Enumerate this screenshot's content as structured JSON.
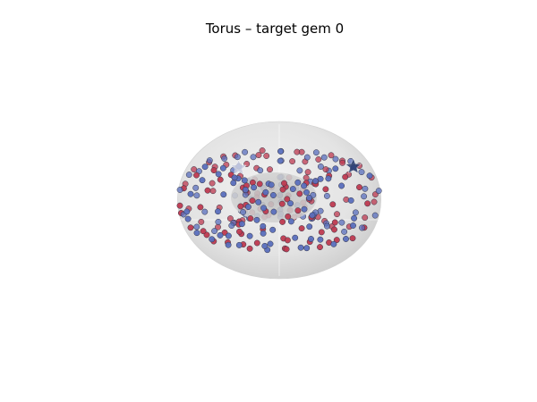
{
  "chart_data": {
    "type": "scatter",
    "title": "Torus – target gem 0",
    "projection": "3d",
    "surface": {
      "shape": "torus",
      "major_radius": 1.0,
      "minor_radius": 0.5,
      "color": "#d4d4d4"
    },
    "grid": false,
    "axes_visible": false,
    "legend": "none",
    "series": [
      {
        "color": "#be3a50",
        "values": [
          [
            0.3,
            -0.05
          ],
          [
            0.3,
            0.5
          ],
          [
            0.3,
            1.05
          ],
          [
            0.3,
            1.6
          ],
          [
            0.3,
            2.15
          ],
          [
            0.3,
            2.7
          ],
          [
            0.3,
            3.25
          ],
          [
            0.3,
            3.8
          ],
          [
            0.3,
            4.35
          ],
          [
            0.3,
            4.9
          ],
          [
            0.3,
            5.45
          ],
          [
            0.3,
            6.0
          ],
          [
            0.8,
            0.25
          ],
          [
            0.8,
            0.8
          ],
          [
            0.8,
            1.35
          ],
          [
            0.8,
            1.9
          ],
          [
            0.8,
            2.45
          ],
          [
            0.8,
            3.0
          ],
          [
            0.8,
            3.55
          ],
          [
            0.8,
            4.1
          ],
          [
            0.8,
            4.65
          ],
          [
            0.8,
            5.2
          ],
          [
            0.8,
            5.75
          ],
          [
            1.3,
            -0.05
          ],
          [
            1.3,
            0.5
          ],
          [
            1.3,
            1.05
          ],
          [
            1.3,
            1.6
          ],
          [
            1.3,
            2.15
          ],
          [
            1.3,
            2.7
          ],
          [
            1.3,
            3.25
          ],
          [
            1.3,
            3.8
          ],
          [
            1.3,
            4.35
          ],
          [
            1.3,
            4.9
          ],
          [
            1.3,
            5.45
          ],
          [
            1.3,
            6.0
          ],
          [
            1.8,
            0.25
          ],
          [
            1.8,
            0.8
          ],
          [
            1.8,
            1.35
          ],
          [
            1.8,
            1.9
          ],
          [
            1.8,
            2.45
          ],
          [
            1.8,
            3.0
          ],
          [
            1.8,
            3.55
          ],
          [
            1.8,
            4.1
          ],
          [
            1.8,
            4.65
          ],
          [
            1.8,
            5.2
          ],
          [
            1.8,
            5.75
          ],
          [
            2.3,
            -0.05
          ],
          [
            2.3,
            0.5
          ],
          [
            2.3,
            1.05
          ],
          [
            2.3,
            1.6
          ],
          [
            2.3,
            2.15
          ],
          [
            2.3,
            2.7
          ],
          [
            2.3,
            3.25
          ],
          [
            2.3,
            3.8
          ],
          [
            2.3,
            4.35
          ],
          [
            2.3,
            4.9
          ],
          [
            2.3,
            5.45
          ],
          [
            2.3,
            6.0
          ],
          [
            2.8,
            0.25
          ],
          [
            2.8,
            0.8
          ],
          [
            2.8,
            1.35
          ],
          [
            2.8,
            1.9
          ],
          [
            2.8,
            2.45
          ],
          [
            2.8,
            3.0
          ],
          [
            2.8,
            3.55
          ],
          [
            2.8,
            4.1
          ],
          [
            2.8,
            4.65
          ],
          [
            2.8,
            5.2
          ],
          [
            2.8,
            5.75
          ],
          [
            3.3,
            -0.05
          ],
          [
            3.3,
            0.5
          ],
          [
            3.3,
            1.05
          ],
          [
            3.3,
            1.6
          ],
          [
            3.3,
            2.15
          ],
          [
            3.3,
            2.7
          ],
          [
            3.3,
            3.25
          ],
          [
            3.3,
            3.8
          ],
          [
            3.3,
            4.35
          ],
          [
            3.3,
            4.9
          ],
          [
            3.3,
            5.45
          ],
          [
            3.3,
            6.0
          ],
          [
            3.8,
            0.25
          ],
          [
            3.8,
            0.8
          ],
          [
            3.8,
            1.35
          ],
          [
            3.8,
            1.9
          ],
          [
            3.8,
            2.45
          ],
          [
            3.8,
            3.0
          ],
          [
            3.8,
            3.55
          ],
          [
            3.8,
            4.1
          ],
          [
            3.8,
            4.65
          ],
          [
            3.8,
            5.2
          ],
          [
            3.8,
            5.75
          ],
          [
            4.3,
            -0.05
          ],
          [
            4.3,
            0.5
          ],
          [
            4.3,
            1.05
          ],
          [
            4.3,
            1.6
          ],
          [
            4.3,
            2.15
          ],
          [
            4.3,
            2.7
          ],
          [
            4.3,
            3.25
          ],
          [
            4.3,
            3.8
          ],
          [
            4.3,
            4.35
          ],
          [
            4.3,
            4.9
          ],
          [
            4.3,
            5.45
          ],
          [
            4.3,
            6.0
          ],
          [
            4.8,
            0.25
          ],
          [
            4.8,
            0.8
          ],
          [
            4.8,
            1.35
          ],
          [
            4.8,
            1.9
          ],
          [
            4.8,
            2.45
          ],
          [
            4.8,
            3.0
          ],
          [
            4.8,
            3.55
          ],
          [
            4.8,
            4.1
          ],
          [
            4.8,
            4.65
          ],
          [
            4.8,
            5.2
          ],
          [
            4.8,
            5.75
          ],
          [
            5.3,
            -0.05
          ],
          [
            5.3,
            0.5
          ],
          [
            5.3,
            1.05
          ],
          [
            5.3,
            1.6
          ],
          [
            5.3,
            2.15
          ],
          [
            5.3,
            2.7
          ],
          [
            5.3,
            3.25
          ],
          [
            5.3,
            3.8
          ],
          [
            5.3,
            4.35
          ],
          [
            5.3,
            4.9
          ],
          [
            5.3,
            5.45
          ],
          [
            5.3,
            6.0
          ],
          [
            5.8,
            0.25
          ],
          [
            5.8,
            0.8
          ],
          [
            5.8,
            1.35
          ],
          [
            5.8,
            1.9
          ],
          [
            5.8,
            2.45
          ],
          [
            5.8,
            3.0
          ],
          [
            5.8,
            3.55
          ],
          [
            5.8,
            4.1
          ],
          [
            5.8,
            4.65
          ],
          [
            5.8,
            5.2
          ],
          [
            5.8,
            5.75
          ]
        ]
      },
      {
        "color": "#5a6fbd",
        "values": [
          [
            0.05,
            0.25
          ],
          [
            0.05,
            0.8
          ],
          [
            0.05,
            1.35
          ],
          [
            0.05,
            1.9
          ],
          [
            0.05,
            2.45
          ],
          [
            0.05,
            3.0
          ],
          [
            0.05,
            3.55
          ],
          [
            0.05,
            4.1
          ],
          [
            0.05,
            4.65
          ],
          [
            0.05,
            5.2
          ],
          [
            0.05,
            5.75
          ],
          [
            0.55,
            -0.05
          ],
          [
            0.55,
            0.5
          ],
          [
            0.55,
            1.05
          ],
          [
            0.55,
            1.6
          ],
          [
            0.55,
            2.15
          ],
          [
            0.55,
            2.7
          ],
          [
            0.55,
            3.25
          ],
          [
            0.55,
            3.8
          ],
          [
            0.55,
            4.35
          ],
          [
            0.55,
            4.9
          ],
          [
            0.55,
            5.45
          ],
          [
            0.55,
            6.0
          ],
          [
            1.05,
            0.25
          ],
          [
            1.05,
            0.8
          ],
          [
            1.05,
            1.35
          ],
          [
            1.05,
            1.9
          ],
          [
            1.05,
            2.45
          ],
          [
            1.05,
            3.0
          ],
          [
            1.05,
            3.55
          ],
          [
            1.05,
            4.1
          ],
          [
            1.05,
            4.65
          ],
          [
            1.05,
            5.2
          ],
          [
            1.05,
            5.75
          ],
          [
            1.55,
            -0.05
          ],
          [
            1.55,
            0.5
          ],
          [
            1.55,
            1.05
          ],
          [
            1.55,
            1.6
          ],
          [
            1.55,
            2.15
          ],
          [
            1.55,
            2.7
          ],
          [
            1.55,
            3.25
          ],
          [
            1.55,
            3.8
          ],
          [
            1.55,
            4.35
          ],
          [
            1.55,
            4.9
          ],
          [
            1.55,
            5.45
          ],
          [
            1.55,
            6.0
          ],
          [
            2.05,
            0.25
          ],
          [
            2.05,
            0.8
          ],
          [
            2.05,
            1.35
          ],
          [
            2.05,
            1.9
          ],
          [
            2.05,
            2.45
          ],
          [
            2.05,
            3.0
          ],
          [
            2.05,
            3.55
          ],
          [
            2.05,
            4.1
          ],
          [
            2.05,
            4.65
          ],
          [
            2.05,
            5.2
          ],
          [
            2.05,
            5.75
          ],
          [
            2.55,
            -0.05
          ],
          [
            2.55,
            0.5
          ],
          [
            2.55,
            1.05
          ],
          [
            2.55,
            1.6
          ],
          [
            2.55,
            2.15
          ],
          [
            2.55,
            2.7
          ],
          [
            2.55,
            3.25
          ],
          [
            2.55,
            3.8
          ],
          [
            2.55,
            4.35
          ],
          [
            2.55,
            4.9
          ],
          [
            2.55,
            5.45
          ],
          [
            2.55,
            6.0
          ],
          [
            3.05,
            0.25
          ],
          [
            3.05,
            0.8
          ],
          [
            3.05,
            1.35
          ],
          [
            3.05,
            1.9
          ],
          [
            3.05,
            2.45
          ],
          [
            3.05,
            3.0
          ],
          [
            3.05,
            3.55
          ],
          [
            3.05,
            4.1
          ],
          [
            3.05,
            4.65
          ],
          [
            3.05,
            5.2
          ],
          [
            3.05,
            5.75
          ],
          [
            3.55,
            -0.05
          ],
          [
            3.55,
            0.5
          ],
          [
            3.55,
            1.05
          ],
          [
            3.55,
            1.6
          ],
          [
            3.55,
            2.15
          ],
          [
            3.55,
            2.7
          ],
          [
            3.55,
            3.25
          ],
          [
            3.55,
            3.8
          ],
          [
            3.55,
            4.35
          ],
          [
            3.55,
            4.9
          ],
          [
            3.55,
            5.45
          ],
          [
            3.55,
            6.0
          ],
          [
            4.05,
            0.25
          ],
          [
            4.05,
            0.8
          ],
          [
            4.05,
            1.35
          ],
          [
            4.05,
            1.9
          ],
          [
            4.05,
            2.45
          ],
          [
            4.05,
            3.0
          ],
          [
            4.05,
            3.55
          ],
          [
            4.05,
            4.1
          ],
          [
            4.05,
            4.65
          ],
          [
            4.05,
            5.2
          ],
          [
            4.05,
            5.75
          ],
          [
            4.55,
            -0.05
          ],
          [
            4.55,
            0.5
          ],
          [
            4.55,
            1.05
          ],
          [
            4.55,
            1.6
          ],
          [
            4.55,
            2.15
          ],
          [
            4.55,
            2.7
          ],
          [
            4.55,
            3.25
          ],
          [
            4.55,
            3.8
          ],
          [
            4.55,
            4.35
          ],
          [
            4.55,
            4.9
          ],
          [
            4.55,
            5.45
          ],
          [
            4.55,
            6.0
          ],
          [
            5.05,
            0.25
          ],
          [
            5.05,
            0.8
          ],
          [
            5.05,
            1.35
          ],
          [
            5.05,
            1.9
          ],
          [
            5.05,
            2.45
          ],
          [
            5.05,
            3.0
          ],
          [
            5.05,
            3.55
          ],
          [
            5.05,
            4.1
          ],
          [
            5.05,
            4.65
          ],
          [
            5.05,
            5.2
          ],
          [
            5.05,
            5.75
          ],
          [
            5.55,
            -0.05
          ],
          [
            5.55,
            0.5
          ],
          [
            5.55,
            1.05
          ],
          [
            5.55,
            1.6
          ],
          [
            5.55,
            2.15
          ],
          [
            5.55,
            2.7
          ],
          [
            5.55,
            3.25
          ],
          [
            5.55,
            3.8
          ],
          [
            5.55,
            4.35
          ],
          [
            5.55,
            4.9
          ],
          [
            5.55,
            5.45
          ],
          [
            5.55,
            6.0
          ]
        ]
      }
    ],
    "markers": [
      {
        "symbol": "star",
        "color": "#2a3d6e",
        "at": [
          0.1,
          1.35
        ]
      },
      {
        "symbol": "star",
        "color": "#c8cce0",
        "at": [
          2.6,
          2.2
        ]
      }
    ]
  }
}
